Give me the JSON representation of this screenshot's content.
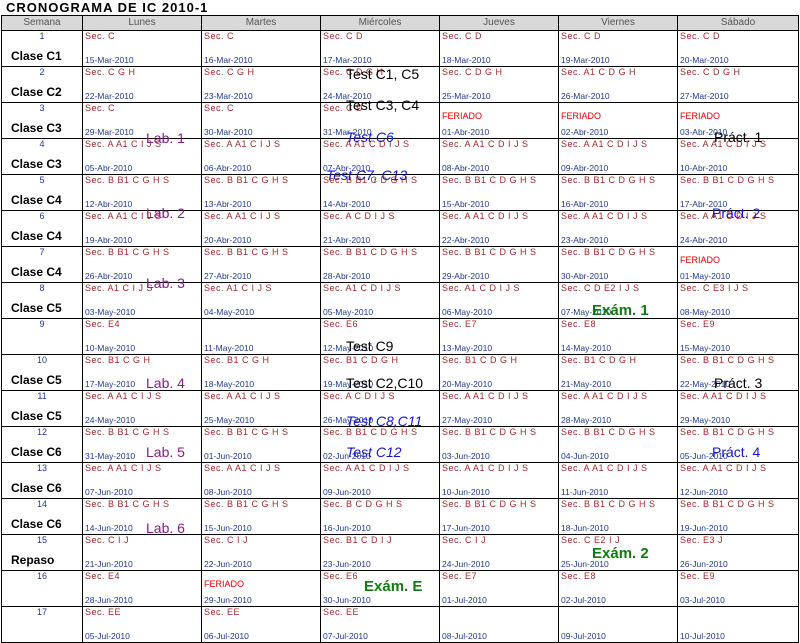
{
  "title": "CRONOGRAMA DE IC 2010-1",
  "headers": [
    "Semana",
    "Lunes",
    "Martes",
    "Miércoles",
    "Jueves",
    "Viernes",
    "Sábado"
  ],
  "weeks": [
    {
      "num": "1",
      "clase": "Clase C1",
      "cells": [
        {
          "sec": "Sec. C",
          "date": "15-Mar-2010"
        },
        {
          "sec": "Sec. C",
          "date": "16-Mar-2010"
        },
        {
          "sec": "Sec. C D",
          "date": "17-Mar-2010"
        },
        {
          "sec": "Sec. C D",
          "date": "18-Mar-2010"
        },
        {
          "sec": "Sec. C D",
          "date": "19-Mar-2010"
        },
        {
          "sec": "Sec. C D",
          "date": "20-Mar-2010"
        }
      ]
    },
    {
      "num": "2",
      "clase": "Clase C2",
      "cells": [
        {
          "sec": "Sec. C G H",
          "date": "22-Mar-2010"
        },
        {
          "sec": "Sec. C G H",
          "date": "23-Mar-2010"
        },
        {
          "sec": "Sec. C D G H",
          "date": "24-Mar-2010"
        },
        {
          "sec": "Sec. C D G H",
          "date": "25-Mar-2010"
        },
        {
          "sec": "Sec. A1 C D G H",
          "date": "26-Mar-2010"
        },
        {
          "sec": "Sec. C D G H",
          "date": "27-Mar-2010"
        }
      ]
    },
    {
      "num": "3",
      "clase": "Clase C3",
      "cells": [
        {
          "sec": "Sec. C",
          "date": "29-Mar-2010"
        },
        {
          "sec": "Sec. C",
          "date": "30-Mar-2010"
        },
        {
          "sec": "Sec. C D",
          "date": "31-Mar-2010"
        },
        {
          "feriado": "FERIADO",
          "date": "01-Abr-2010"
        },
        {
          "feriado": "FERIADO",
          "date": "02-Abr-2010"
        },
        {
          "feriado": "FERIADO",
          "date": "03-Abr-2010"
        }
      ]
    },
    {
      "num": "4",
      "clase": "Clase C3",
      "cells": [
        {
          "sec": "Sec. A A1 C I J S",
          "date": "05-Abr-2010"
        },
        {
          "sec": "Sec. A A1 C I J S",
          "date": "06-Abr-2010"
        },
        {
          "sec": "Sec. A A1 C D I J S",
          "date": "07-Abr-2010"
        },
        {
          "sec": "Sec. A A1 C D I J S",
          "date": "08-Abr-2010"
        },
        {
          "sec": "Sec. A A1 C D I J S",
          "date": "09-Abr-2010"
        },
        {
          "sec": "Sec. A A1 C D I J S",
          "date": "10-Abr-2010"
        }
      ]
    },
    {
      "num": "5",
      "clase": "Clase C4",
      "cells": [
        {
          "sec": "Sec. B B1 C G H S",
          "date": "12-Abr-2010"
        },
        {
          "sec": "Sec. B B1 C G H S",
          "date": "13-Abr-2010"
        },
        {
          "sec": "Sec. B B1 C D G H S",
          "date": "14-Abr-2010"
        },
        {
          "sec": "Sec. B B1 C D G H S",
          "date": "15-Abr-2010"
        },
        {
          "sec": "Sec. B B1 C D G H S",
          "date": "16-Abr-2010"
        },
        {
          "sec": "Sec. B B1 C D G H S",
          "date": "17-Abr-2010"
        }
      ]
    },
    {
      "num": "6",
      "clase": "Clase C4",
      "cells": [
        {
          "sec": "Sec. A A1 C I J S",
          "date": "19-Abr-2010"
        },
        {
          "sec": "Sec. A A1 C I J S",
          "date": "20-Abr-2010"
        },
        {
          "sec": "Sec. A C D I J S",
          "date": "21-Abr-2010"
        },
        {
          "sec": "Sec. A A1 C D I J S",
          "date": "22-Abr-2010"
        },
        {
          "sec": "Sec. A A1 C D I J S",
          "date": "23-Abr-2010"
        },
        {
          "sec": "Sec. A A1 C D I J S",
          "date": "24-Abr-2010"
        }
      ]
    },
    {
      "num": "7",
      "clase": "Clase C4",
      "cells": [
        {
          "sec": "Sec. B B1 C G H S",
          "date": "26-Abr-2010"
        },
        {
          "sec": "Sec. B B1 C G H S",
          "date": "27-Abr-2010"
        },
        {
          "sec": "Sec. B B1 C D G H S",
          "date": "28-Abr-2010"
        },
        {
          "sec": "Sec. B B1 C D G H S",
          "date": "29-Abr-2010"
        },
        {
          "sec": "Sec. B B1 C D G H S",
          "date": "30-Abr-2010"
        },
        {
          "feriado": "FERIADO",
          "date": "01-May-2010"
        }
      ]
    },
    {
      "num": "8",
      "clase": "Clase C5",
      "cells": [
        {
          "sec": "Sec. A1 C I J S",
          "date": "03-May-2010"
        },
        {
          "sec": "Sec. A1 C I J S",
          "date": "04-May-2010"
        },
        {
          "sec": "Sec. A1 C D I J S",
          "date": "05-May-2010"
        },
        {
          "sec": "Sec. A1 C D I J S",
          "date": "06-May-2010"
        },
        {
          "sec": "Sec. C D E2 I J S",
          "date": "07-May-2010"
        },
        {
          "sec": "Sec. C E3 I J S",
          "date": "08-May-2010"
        }
      ]
    },
    {
      "num": "9",
      "clase": "",
      "cells": [
        {
          "sec": "Sec. E4",
          "date": "10-May-2010"
        },
        {
          "sec": "",
          "date": "11-May-2010"
        },
        {
          "sec": "Sec. E6",
          "date": "12-May-2010"
        },
        {
          "sec": "Sec. E7",
          "date": "13-May-2010"
        },
        {
          "sec": "Sec. E8",
          "date": "14-May-2010"
        },
        {
          "sec": "Sec. E9",
          "date": "15-May-2010"
        }
      ]
    },
    {
      "num": "10",
      "clase": "Clase C5",
      "cells": [
        {
          "sec": "Sec. B1 C G H",
          "date": "17-May-2010"
        },
        {
          "sec": "Sec. B1 C G H",
          "date": "18-May-2010"
        },
        {
          "sec": "Sec. B1 C D G H",
          "date": "19-May-2010"
        },
        {
          "sec": "Sec. B1 C D G H",
          "date": "20-May-2010"
        },
        {
          "sec": "Sec. B1 C D G H",
          "date": "21-May-2010"
        },
        {
          "sec": "Sec. B B1 C D G H S",
          "date": "22-May-2010"
        }
      ]
    },
    {
      "num": "11",
      "clase": "Clase C5",
      "cells": [
        {
          "sec": "Sec. A A1 C I J S",
          "date": "24-May-2010"
        },
        {
          "sec": "Sec. A A1 C I J S",
          "date": "25-May-2010"
        },
        {
          "sec": "Sec. A C D I J S",
          "date": "26-May-2010"
        },
        {
          "sec": "Sec. A A1 C D I J S",
          "date": "27-May-2010"
        },
        {
          "sec": "Sec. A A1 C D I J S",
          "date": "28-May-2010"
        },
        {
          "sec": "Sec. A A1 C D I J S",
          "date": "29-May-2010"
        }
      ]
    },
    {
      "num": "12",
      "clase": "Clase C6",
      "cells": [
        {
          "sec": "Sec. B B1 C G H S",
          "date": "31-May-2010"
        },
        {
          "sec": "Sec. B B1 C G H S",
          "date": "01-Jun-2010"
        },
        {
          "sec": "Sec. B B1 C D G H S",
          "date": "02-Jun-2010"
        },
        {
          "sec": "Sec. B B1 C D G H S",
          "date": "03-Jun-2010"
        },
        {
          "sec": "Sec. B B1 C D G H S",
          "date": "04-Jun-2010"
        },
        {
          "sec": "Sec. B B1 C D G H S",
          "date": "05-Jun-2010"
        }
      ]
    },
    {
      "num": "13",
      "clase": "Clase C6",
      "cells": [
        {
          "sec": "Sec. A A1 C I J S",
          "date": "07-Jun-2010"
        },
        {
          "sec": "Sec. A A1 C I J S",
          "date": "08-Jun-2010"
        },
        {
          "sec": "Sec. A A1 C D I J S",
          "date": "09-Jun-2010"
        },
        {
          "sec": "Sec. A A1 C D I J S",
          "date": "10-Jun-2010"
        },
        {
          "sec": "Sec. A A1 C D I J S",
          "date": "11-Jun-2010"
        },
        {
          "sec": "Sec. A A1 C D I J S",
          "date": "12-Jun-2010"
        }
      ]
    },
    {
      "num": "14",
      "clase": "Clase C6",
      "cells": [
        {
          "sec": "Sec. B B1 C G H S",
          "date": "14-Jun-2010"
        },
        {
          "sec": "Sec. B B1 C G H S",
          "date": "15-Jun-2010"
        },
        {
          "sec": "Sec. B C D G H S",
          "date": "16-Jun-2010"
        },
        {
          "sec": "Sec. B B1 C D G H S",
          "date": "17-Jun-2010"
        },
        {
          "sec": "Sec. B B1 C D G H S",
          "date": "18-Jun-2010"
        },
        {
          "sec": "Sec. B B1 C D G H S",
          "date": "19-Jun-2010"
        }
      ]
    },
    {
      "num": "15",
      "clase": "Repaso",
      "cells": [
        {
          "sec": "Sec. C I J",
          "date": "21-Jun-2010"
        },
        {
          "sec": "Sec. C I J",
          "date": "22-Jun-2010"
        },
        {
          "sec": "Sec. B1 C D I J",
          "date": "23-Jun-2010"
        },
        {
          "sec": "Sec. C I J",
          "date": "24-Jun-2010"
        },
        {
          "sec": "Sec. C E2 I J",
          "date": "25-Jun-2010"
        },
        {
          "sec": "Sec. E3 J",
          "date": "26-Jun-2010"
        }
      ]
    },
    {
      "num": "16",
      "clase": "",
      "cells": [
        {
          "sec": "Sec. E4",
          "date": "28-Jun-2010"
        },
        {
          "feriado": "FERIADO",
          "date": "29-Jun-2010"
        },
        {
          "sec": "Sec. E6",
          "date": "30-Jun-2010"
        },
        {
          "sec": "Sec. E7",
          "date": "01-Jul-2010"
        },
        {
          "sec": "Sec. E8",
          "date": "02-Jul-2010"
        },
        {
          "sec": "Sec. E9",
          "date": "03-Jul-2010"
        }
      ]
    },
    {
      "num": "17",
      "clase": "",
      "cells": [
        {
          "sec": "Sec. EE",
          "date": "05-Jul-2010"
        },
        {
          "sec": "Sec. EE",
          "date": "06-Jul-2010"
        },
        {
          "sec": "Sec. EE",
          "date": "07-Jul-2010"
        },
        {
          "sec": "",
          "date": "08-Jul-2010"
        },
        {
          "sec": "",
          "date": "09-Jul-2010"
        },
        {
          "sec": "",
          "date": "10-Jul-2010"
        }
      ]
    }
  ],
  "overlays": {
    "test_c1_c5": "Test  C1, C5",
    "test_c3_c4": "Test  C3, C4",
    "lab1": "Lab. 1",
    "test_c6": "Test  C6",
    "pract1": "Práct. 1",
    "test_c7_c13": "Test  C7, C13",
    "lab2": "Lab. 2",
    "pract2": "Práct. 2",
    "lab3": "Lab. 3",
    "exam1": "Exám. 1",
    "test_c9": "Test  C9",
    "lab4": "Lab. 4",
    "test_c2_c10": "Test  C2,C10",
    "pract3": "Práct. 3",
    "test_c8_c11": "Test  C8,C11",
    "lab5": "Lab. 5",
    "test_c12": "Test  C12",
    "pract4": "Práct. 4",
    "lab6": "Lab. 6",
    "exam2": "Exám. 2",
    "exam_e": "Exám. E"
  },
  "colors": {
    "header_bg": "#d9d9d9",
    "sec_text": "#a12b2b",
    "date_text": "#1f3a8f",
    "feriado": "#e00000",
    "lab_purple": "#8a1a8a",
    "test_blue": "#1515d0",
    "exam_green": "#137a13"
  }
}
